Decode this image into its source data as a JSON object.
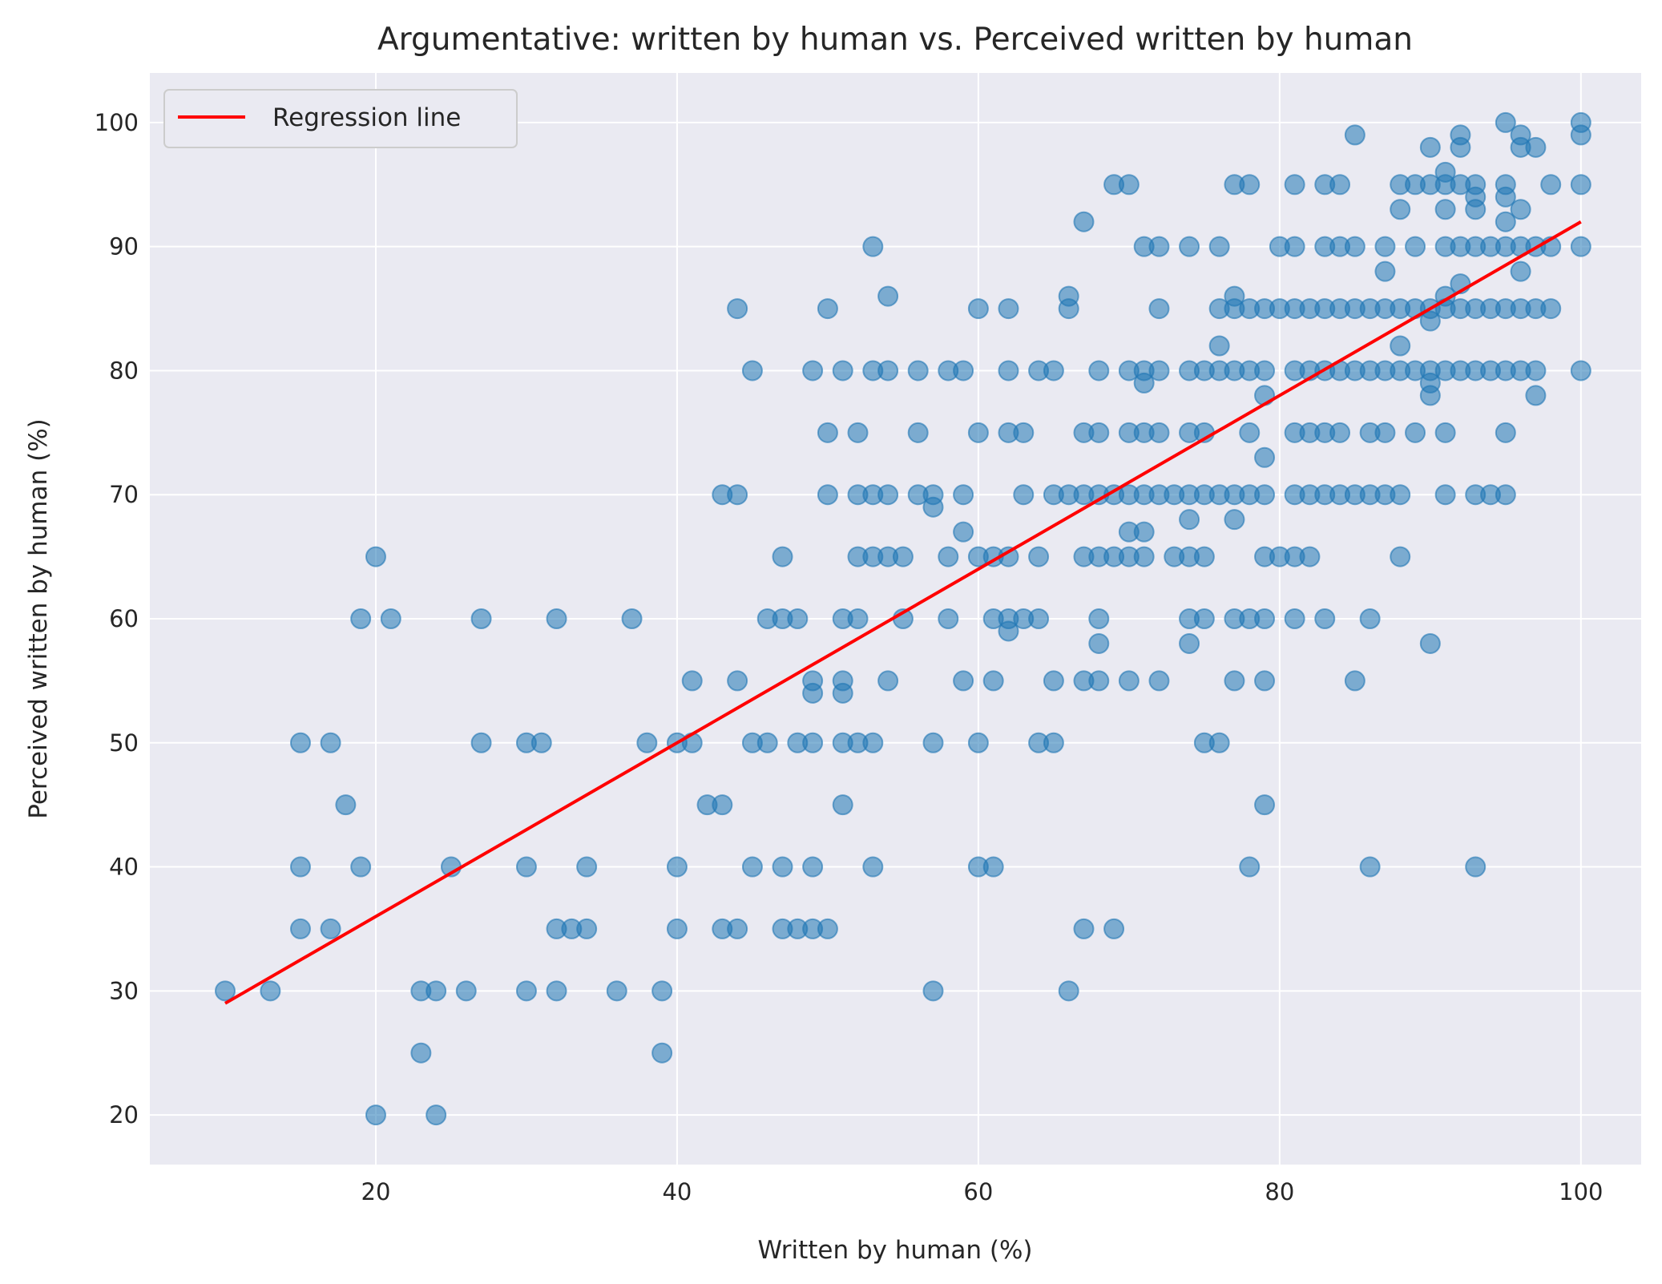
{
  "chart_data": {
    "type": "scatter",
    "title": "Argumentative: written by human vs. Perceived written by human",
    "xlabel": "Written by human (%)",
    "ylabel": "Perceived written by human (%)",
    "xlim": [
      5,
      104
    ],
    "ylim": [
      16,
      104
    ],
    "xticks": [
      20,
      40,
      60,
      80,
      100
    ],
    "yticks": [
      20,
      30,
      40,
      50,
      60,
      70,
      80,
      90,
      100
    ],
    "grid": true,
    "legend": {
      "position": "top-left",
      "entries": [
        "Regression line"
      ]
    },
    "colors": {
      "background": "#eaeaf2",
      "point": "#1f77b4",
      "regression": "#ff0000",
      "grid": "#ffffff"
    },
    "regression": {
      "x": [
        10,
        100
      ],
      "y": [
        29,
        92
      ]
    },
    "points": [
      [
        10,
        30
      ],
      [
        13,
        30
      ],
      [
        15,
        50
      ],
      [
        15,
        40
      ],
      [
        15,
        35
      ],
      [
        17,
        50
      ],
      [
        17,
        35
      ],
      [
        18,
        45
      ],
      [
        19,
        60
      ],
      [
        19,
        40
      ],
      [
        20,
        65
      ],
      [
        20,
        20
      ],
      [
        21,
        60
      ],
      [
        23,
        30
      ],
      [
        23,
        25
      ],
      [
        24,
        30
      ],
      [
        24,
        20
      ],
      [
        25,
        40
      ],
      [
        26,
        30
      ],
      [
        27,
        60
      ],
      [
        27,
        50
      ],
      [
        30,
        50
      ],
      [
        30,
        40
      ],
      [
        30,
        30
      ],
      [
        31,
        50
      ],
      [
        32,
        60
      ],
      [
        32,
        35
      ],
      [
        32,
        30
      ],
      [
        33,
        35
      ],
      [
        34,
        40
      ],
      [
        34,
        35
      ],
      [
        36,
        30
      ],
      [
        37,
        60
      ],
      [
        38,
        50
      ],
      [
        39,
        30
      ],
      [
        39,
        25
      ],
      [
        40,
        50
      ],
      [
        40,
        40
      ],
      [
        40,
        35
      ],
      [
        41,
        55
      ],
      [
        41,
        50
      ],
      [
        42,
        45
      ],
      [
        43,
        70
      ],
      [
        43,
        45
      ],
      [
        43,
        35
      ],
      [
        44,
        85
      ],
      [
        44,
        70
      ],
      [
        44,
        55
      ],
      [
        44,
        35
      ],
      [
        45,
        80
      ],
      [
        45,
        50
      ],
      [
        45,
        40
      ],
      [
        46,
        60
      ],
      [
        46,
        50
      ],
      [
        47,
        65
      ],
      [
        47,
        60
      ],
      [
        47,
        40
      ],
      [
        47,
        35
      ],
      [
        48,
        60
      ],
      [
        48,
        50
      ],
      [
        48,
        35
      ],
      [
        49,
        80
      ],
      [
        49,
        55
      ],
      [
        49,
        54
      ],
      [
        49,
        50
      ],
      [
        49,
        40
      ],
      [
        49,
        35
      ],
      [
        50,
        85
      ],
      [
        50,
        75
      ],
      [
        50,
        70
      ],
      [
        50,
        35
      ],
      [
        51,
        80
      ],
      [
        51,
        60
      ],
      [
        51,
        55
      ],
      [
        51,
        54
      ],
      [
        51,
        50
      ],
      [
        51,
        45
      ],
      [
        52,
        75
      ],
      [
        52,
        70
      ],
      [
        52,
        65
      ],
      [
        52,
        60
      ],
      [
        52,
        50
      ],
      [
        53,
        90
      ],
      [
        53,
        80
      ],
      [
        53,
        70
      ],
      [
        53,
        65
      ],
      [
        53,
        50
      ],
      [
        53,
        40
      ],
      [
        54,
        86
      ],
      [
        54,
        80
      ],
      [
        54,
        70
      ],
      [
        54,
        65
      ],
      [
        54,
        55
      ],
      [
        55,
        65
      ],
      [
        55,
        60
      ],
      [
        56,
        80
      ],
      [
        56,
        75
      ],
      [
        56,
        70
      ],
      [
        57,
        70
      ],
      [
        57,
        69
      ],
      [
        57,
        50
      ],
      [
        57,
        30
      ],
      [
        58,
        80
      ],
      [
        58,
        65
      ],
      [
        58,
        60
      ],
      [
        59,
        80
      ],
      [
        59,
        70
      ],
      [
        59,
        67
      ],
      [
        59,
        55
      ],
      [
        60,
        85
      ],
      [
        60,
        75
      ],
      [
        60,
        65
      ],
      [
        60,
        50
      ],
      [
        60,
        40
      ],
      [
        61,
        65
      ],
      [
        61,
        60
      ],
      [
        61,
        55
      ],
      [
        61,
        40
      ],
      [
        62,
        85
      ],
      [
        62,
        80
      ],
      [
        62,
        75
      ],
      [
        62,
        65
      ],
      [
        62,
        60
      ],
      [
        62,
        59
      ],
      [
        63,
        75
      ],
      [
        63,
        70
      ],
      [
        63,
        60
      ],
      [
        64,
        80
      ],
      [
        64,
        65
      ],
      [
        64,
        60
      ],
      [
        64,
        50
      ],
      [
        65,
        80
      ],
      [
        65,
        70
      ],
      [
        65,
        55
      ],
      [
        65,
        50
      ],
      [
        66,
        86
      ],
      [
        66,
        85
      ],
      [
        66,
        70
      ],
      [
        66,
        30
      ],
      [
        67,
        92
      ],
      [
        67,
        75
      ],
      [
        67,
        70
      ],
      [
        67,
        65
      ],
      [
        67,
        55
      ],
      [
        67,
        35
      ],
      [
        68,
        80
      ],
      [
        68,
        75
      ],
      [
        68,
        70
      ],
      [
        68,
        65
      ],
      [
        68,
        60
      ],
      [
        68,
        58
      ],
      [
        68,
        55
      ],
      [
        69,
        95
      ],
      [
        69,
        70
      ],
      [
        69,
        65
      ],
      [
        69,
        35
      ],
      [
        70,
        95
      ],
      [
        70,
        80
      ],
      [
        70,
        75
      ],
      [
        70,
        70
      ],
      [
        70,
        67
      ],
      [
        70,
        65
      ],
      [
        70,
        55
      ],
      [
        71,
        90
      ],
      [
        71,
        80
      ],
      [
        71,
        79
      ],
      [
        71,
        75
      ],
      [
        71,
        70
      ],
      [
        71,
        67
      ],
      [
        71,
        65
      ],
      [
        72,
        90
      ],
      [
        72,
        85
      ],
      [
        72,
        80
      ],
      [
        72,
        75
      ],
      [
        72,
        70
      ],
      [
        72,
        55
      ],
      [
        73,
        70
      ],
      [
        73,
        65
      ],
      [
        74,
        90
      ],
      [
        74,
        80
      ],
      [
        74,
        75
      ],
      [
        74,
        70
      ],
      [
        74,
        68
      ],
      [
        74,
        65
      ],
      [
        74,
        60
      ],
      [
        74,
        58
      ],
      [
        75,
        80
      ],
      [
        75,
        75
      ],
      [
        75,
        70
      ],
      [
        75,
        65
      ],
      [
        75,
        60
      ],
      [
        75,
        50
      ],
      [
        76,
        90
      ],
      [
        76,
        85
      ],
      [
        76,
        82
      ],
      [
        76,
        80
      ],
      [
        76,
        70
      ],
      [
        76,
        50
      ],
      [
        77,
        95
      ],
      [
        77,
        86
      ],
      [
        77,
        85
      ],
      [
        77,
        80
      ],
      [
        77,
        70
      ],
      [
        77,
        68
      ],
      [
        77,
        60
      ],
      [
        77,
        55
      ],
      [
        78,
        95
      ],
      [
        78,
        85
      ],
      [
        78,
        80
      ],
      [
        78,
        75
      ],
      [
        78,
        70
      ],
      [
        78,
        60
      ],
      [
        78,
        40
      ],
      [
        79,
        85
      ],
      [
        79,
        80
      ],
      [
        79,
        78
      ],
      [
        79,
        73
      ],
      [
        79,
        70
      ],
      [
        79,
        65
      ],
      [
        79,
        60
      ],
      [
        79,
        55
      ],
      [
        79,
        45
      ],
      [
        80,
        90
      ],
      [
        80,
        85
      ],
      [
        80,
        65
      ],
      [
        81,
        95
      ],
      [
        81,
        90
      ],
      [
        81,
        85
      ],
      [
        81,
        80
      ],
      [
        81,
        75
      ],
      [
        81,
        70
      ],
      [
        81,
        65
      ],
      [
        81,
        60
      ],
      [
        82,
        85
      ],
      [
        82,
        80
      ],
      [
        82,
        75
      ],
      [
        82,
        70
      ],
      [
        82,
        65
      ],
      [
        83,
        95
      ],
      [
        83,
        90
      ],
      [
        83,
        85
      ],
      [
        83,
        80
      ],
      [
        83,
        75
      ],
      [
        83,
        70
      ],
      [
        83,
        60
      ],
      [
        84,
        95
      ],
      [
        84,
        90
      ],
      [
        84,
        85
      ],
      [
        84,
        80
      ],
      [
        84,
        75
      ],
      [
        84,
        70
      ],
      [
        85,
        99
      ],
      [
        85,
        90
      ],
      [
        85,
        85
      ],
      [
        85,
        80
      ],
      [
        85,
        70
      ],
      [
        85,
        55
      ],
      [
        86,
        85
      ],
      [
        86,
        80
      ],
      [
        86,
        75
      ],
      [
        86,
        70
      ],
      [
        86,
        60
      ],
      [
        86,
        40
      ],
      [
        87,
        90
      ],
      [
        87,
        88
      ],
      [
        87,
        85
      ],
      [
        87,
        80
      ],
      [
        87,
        75
      ],
      [
        87,
        70
      ],
      [
        88,
        95
      ],
      [
        88,
        93
      ],
      [
        88,
        85
      ],
      [
        88,
        82
      ],
      [
        88,
        80
      ],
      [
        88,
        70
      ],
      [
        88,
        65
      ],
      [
        89,
        95
      ],
      [
        89,
        90
      ],
      [
        89,
        85
      ],
      [
        89,
        80
      ],
      [
        89,
        75
      ],
      [
        90,
        98
      ],
      [
        90,
        95
      ],
      [
        90,
        85
      ],
      [
        90,
        84
      ],
      [
        90,
        80
      ],
      [
        90,
        79
      ],
      [
        90,
        78
      ],
      [
        90,
        58
      ],
      [
        91,
        96
      ],
      [
        91,
        95
      ],
      [
        91,
        93
      ],
      [
        91,
        90
      ],
      [
        91,
        86
      ],
      [
        91,
        85
      ],
      [
        91,
        80
      ],
      [
        91,
        75
      ],
      [
        91,
        70
      ],
      [
        92,
        99
      ],
      [
        92,
        98
      ],
      [
        92,
        95
      ],
      [
        92,
        90
      ],
      [
        92,
        87
      ],
      [
        92,
        85
      ],
      [
        92,
        80
      ],
      [
        93,
        95
      ],
      [
        93,
        94
      ],
      [
        93,
        93
      ],
      [
        93,
        90
      ],
      [
        93,
        85
      ],
      [
        93,
        80
      ],
      [
        93,
        70
      ],
      [
        93,
        40
      ],
      [
        94,
        90
      ],
      [
        94,
        85
      ],
      [
        94,
        80
      ],
      [
        94,
        70
      ],
      [
        95,
        100
      ],
      [
        95,
        95
      ],
      [
        95,
        94
      ],
      [
        95,
        92
      ],
      [
        95,
        90
      ],
      [
        95,
        85
      ],
      [
        95,
        80
      ],
      [
        95,
        75
      ],
      [
        95,
        70
      ],
      [
        96,
        99
      ],
      [
        96,
        98
      ],
      [
        96,
        93
      ],
      [
        96,
        90
      ],
      [
        96,
        88
      ],
      [
        96,
        85
      ],
      [
        96,
        80
      ],
      [
        97,
        98
      ],
      [
        97,
        90
      ],
      [
        97,
        85
      ],
      [
        97,
        80
      ],
      [
        97,
        78
      ],
      [
        98,
        95
      ],
      [
        98,
        90
      ],
      [
        98,
        85
      ],
      [
        100,
        100
      ],
      [
        100,
        99
      ],
      [
        100,
        95
      ],
      [
        100,
        90
      ],
      [
        100,
        80
      ]
    ]
  }
}
